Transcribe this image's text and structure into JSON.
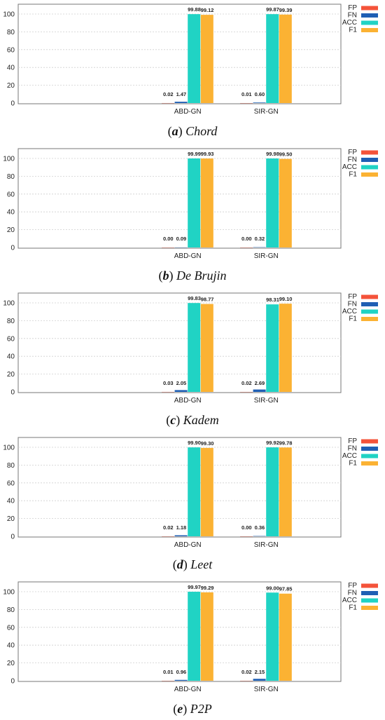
{
  "colors": {
    "FP": "#f4533a",
    "FN": "#1f5fb4",
    "ACC": "#20d3c4",
    "F1": "#fbb233"
  },
  "chart_data": [
    {
      "type": "bar",
      "caption_letter": "a",
      "caption_name": "Chord",
      "categories": [
        "ABD-GN",
        "SIR-GN"
      ],
      "ylim": [
        0,
        110
      ],
      "yticks": [
        0,
        20,
        40,
        60,
        80,
        100
      ],
      "legend": [
        "FP",
        "FN",
        "ACC",
        "F1"
      ],
      "series": [
        {
          "name": "FP",
          "values": [
            0.02,
            0.01
          ],
          "labels": [
            "0.02",
            "0.01"
          ]
        },
        {
          "name": "FN",
          "values": [
            1.47,
            0.6
          ],
          "labels": [
            "1.47",
            "0.60"
          ]
        },
        {
          "name": "ACC",
          "values": [
            99.88,
            99.87
          ],
          "labels": [
            "99.88",
            "99.87"
          ]
        },
        {
          "name": "F1",
          "values": [
            99.12,
            99.39
          ],
          "labels": [
            "99.12",
            "99.39"
          ]
        }
      ]
    },
    {
      "type": "bar",
      "caption_letter": "b",
      "caption_name": "De Brujin",
      "categories": [
        "ABD-GN",
        "SIR-GN"
      ],
      "ylim": [
        0,
        110
      ],
      "yticks": [
        0,
        20,
        40,
        60,
        80,
        100
      ],
      "legend": [
        "FP",
        "FN",
        "ACC",
        "F1"
      ],
      "series": [
        {
          "name": "FP",
          "values": [
            0.0,
            0.0
          ],
          "labels": [
            "0.00",
            "0.00"
          ]
        },
        {
          "name": "FN",
          "values": [
            0.09,
            0.32
          ],
          "labels": [
            "0.09",
            "0.32"
          ]
        },
        {
          "name": "ACC",
          "values": [
            99.99,
            99.98
          ],
          "labels": [
            "99.99",
            "99.98"
          ]
        },
        {
          "name": "F1",
          "values": [
            99.93,
            99.5
          ],
          "labels": [
            "99.93",
            "99.50"
          ]
        }
      ]
    },
    {
      "type": "bar",
      "caption_letter": "c",
      "caption_name": "Kadem",
      "categories": [
        "ABD-GN",
        "SIR-GN"
      ],
      "ylim": [
        0,
        110
      ],
      "yticks": [
        0,
        20,
        40,
        60,
        80,
        100
      ],
      "legend": [
        "FP",
        "FN",
        "ACC",
        "F1"
      ],
      "series": [
        {
          "name": "FP",
          "values": [
            0.03,
            0.02
          ],
          "labels": [
            "0.03",
            "0.02"
          ]
        },
        {
          "name": "FN",
          "values": [
            2.05,
            2.69
          ],
          "labels": [
            "2.05",
            "2.69"
          ]
        },
        {
          "name": "ACC",
          "values": [
            99.83,
            98.31
          ],
          "labels": [
            "99.83",
            "98.31"
          ]
        },
        {
          "name": "F1",
          "values": [
            98.77,
            99.1
          ],
          "labels": [
            "98.77",
            "99.10"
          ]
        }
      ]
    },
    {
      "type": "bar",
      "caption_letter": "d",
      "caption_name": "Leet",
      "categories": [
        "ABD-GN",
        "SIR-GN"
      ],
      "ylim": [
        0,
        110
      ],
      "yticks": [
        0,
        20,
        40,
        60,
        80,
        100
      ],
      "legend": [
        "FP",
        "FN",
        "ACC",
        "F1"
      ],
      "series": [
        {
          "name": "FP",
          "values": [
            0.02,
            0.0
          ],
          "labels": [
            "0.02",
            "0.00"
          ]
        },
        {
          "name": "FN",
          "values": [
            1.18,
            0.36
          ],
          "labels": [
            "1.18",
            "0.36"
          ]
        },
        {
          "name": "ACC",
          "values": [
            99.9,
            99.92
          ],
          "labels": [
            "99.90",
            "99.92"
          ]
        },
        {
          "name": "F1",
          "values": [
            99.3,
            99.78
          ],
          "labels": [
            "99.30",
            "99.78"
          ]
        }
      ]
    },
    {
      "type": "bar",
      "caption_letter": "e",
      "caption_name": "P2P",
      "categories": [
        "ABD-GN",
        "SIR-GN"
      ],
      "ylim": [
        0,
        110
      ],
      "yticks": [
        0,
        20,
        40,
        60,
        80,
        100
      ],
      "legend": [
        "FP",
        "FN",
        "ACC",
        "F1"
      ],
      "series": [
        {
          "name": "FP",
          "values": [
            0.01,
            0.02
          ],
          "labels": [
            "0.01",
            "0.02"
          ]
        },
        {
          "name": "FN",
          "values": [
            0.96,
            2.15
          ],
          "labels": [
            "0.96",
            "2.15"
          ]
        },
        {
          "name": "ACC",
          "values": [
            99.97,
            99.0
          ],
          "labels": [
            "99.97",
            "99.00"
          ]
        },
        {
          "name": "F1",
          "values": [
            99.29,
            97.85
          ],
          "labels": [
            "99.29",
            "97.85"
          ]
        }
      ]
    }
  ]
}
